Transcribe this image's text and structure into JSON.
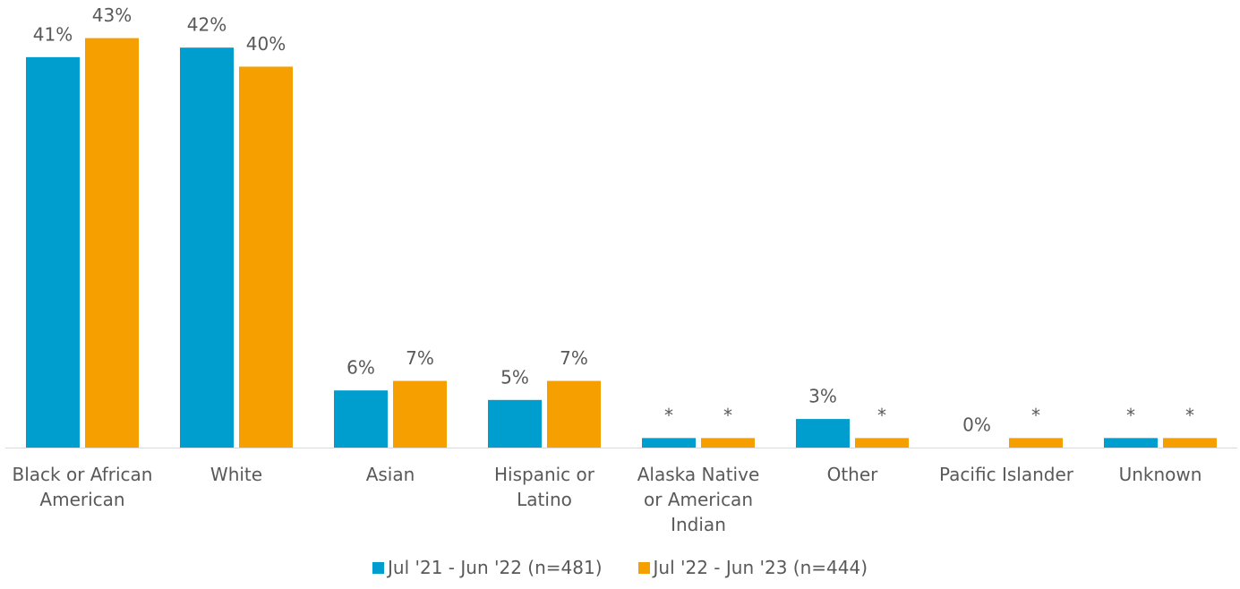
{
  "chart_data": {
    "type": "bar",
    "categories": [
      "Black or African American",
      "White",
      "Asian",
      "Hispanic or Latino",
      "Alaska Native or American Indian",
      "Other",
      "Pacific Islander",
      "Unknown"
    ],
    "series": [
      {
        "name": "Jul '21 - Jun '22 (n=481)",
        "color": "#009dcf",
        "values": [
          41,
          42,
          6,
          5,
          1,
          3,
          0,
          1
        ],
        "value_labels": [
          "41%",
          "42%",
          "6%",
          "5%",
          "*",
          "3%",
          "0%",
          "*"
        ]
      },
      {
        "name": "Jul '22 - Jun '23 (n=444)",
        "color": "#f5a000",
        "values": [
          43,
          40,
          7,
          7,
          1,
          1,
          1,
          1
        ],
        "value_labels": [
          "43%",
          "40%",
          "7%",
          "7%",
          "*",
          "*",
          "*",
          "*"
        ]
      }
    ],
    "ylim": [
      0,
      47
    ],
    "legend": "bottom"
  }
}
